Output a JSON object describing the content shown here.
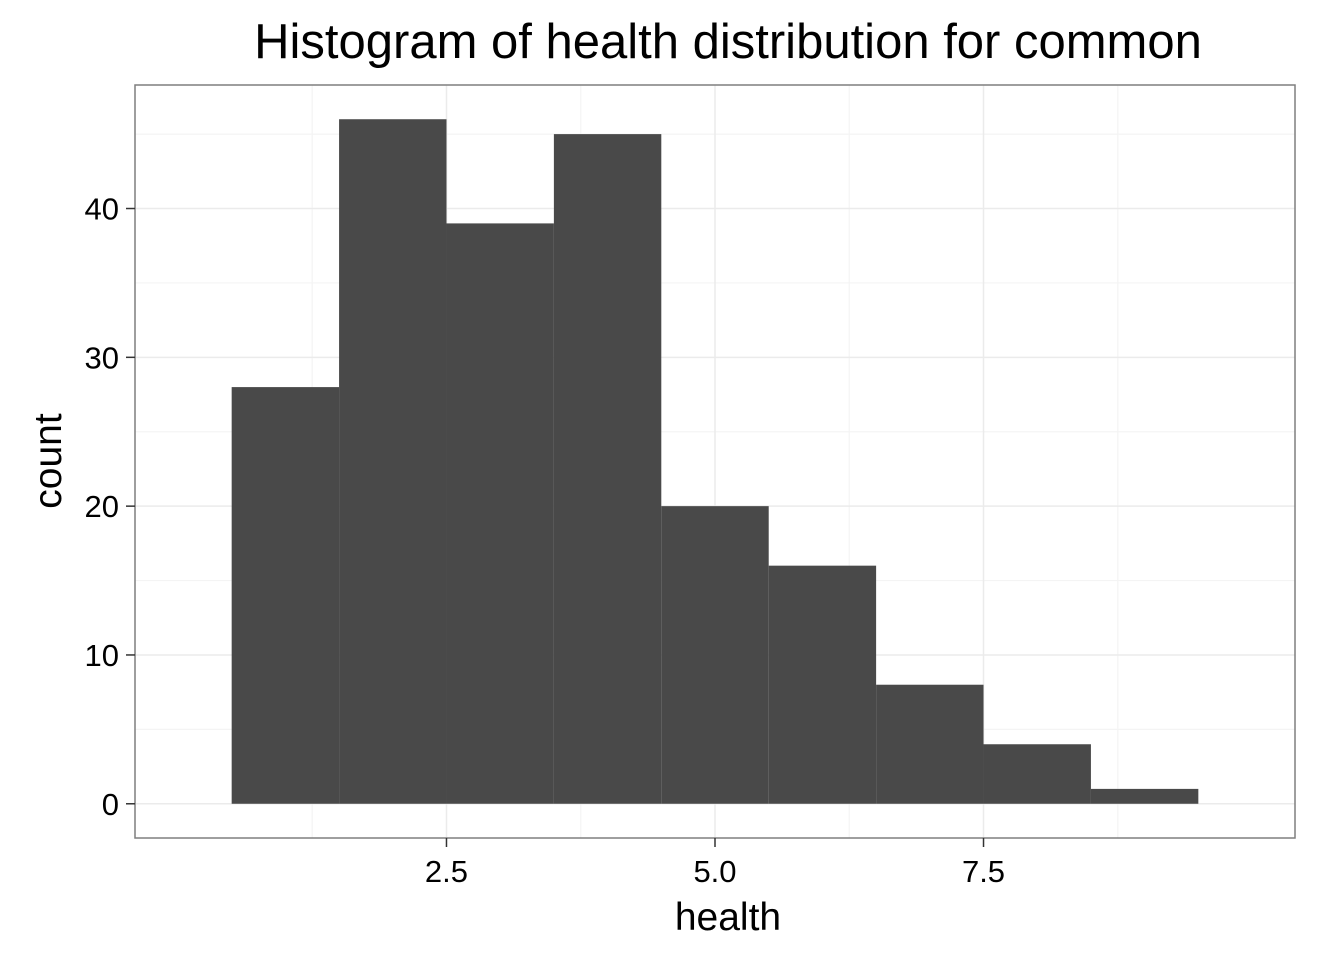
{
  "chart_data": {
    "type": "bar",
    "title": "Histogram of health distribution for common",
    "xlabel": "health",
    "ylabel": "count",
    "bins": [
      {
        "x0": 0.5,
        "x1": 1.5,
        "count": 28
      },
      {
        "x0": 1.5,
        "x1": 2.5,
        "count": 46
      },
      {
        "x0": 2.5,
        "x1": 3.5,
        "count": 39
      },
      {
        "x0": 3.5,
        "x1": 4.5,
        "count": 45
      },
      {
        "x0": 4.5,
        "x1": 5.5,
        "count": 20
      },
      {
        "x0": 5.5,
        "x1": 6.5,
        "count": 16
      },
      {
        "x0": 6.5,
        "x1": 7.5,
        "count": 8
      },
      {
        "x0": 7.5,
        "x1": 8.5,
        "count": 4
      },
      {
        "x0": 8.5,
        "x1": 9.5,
        "count": 1
      }
    ],
    "xlim": [
      -0.4,
      10.4
    ],
    "ylim": [
      -2.3,
      48.3
    ],
    "x_ticks": [
      2.5,
      5.0,
      7.5
    ],
    "x_tick_labels": [
      "2.5",
      "5.0",
      "7.5"
    ],
    "y_ticks": [
      0,
      10,
      20,
      30,
      40
    ],
    "y_tick_labels": [
      "0",
      "10",
      "20",
      "30",
      "40"
    ],
    "grid": true,
    "bar_color": "#494949",
    "panel_background": "#ffffff",
    "grid_color": "#ebebeb",
    "border_color": "#7f7f7f"
  }
}
